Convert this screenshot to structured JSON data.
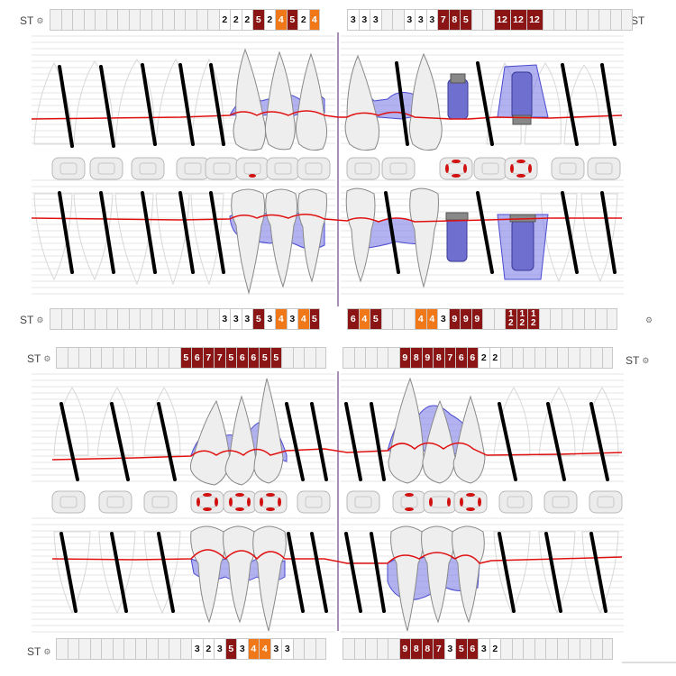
{
  "label": "ST",
  "gear_icon": "gear-icon",
  "colors": {
    "dark_red": "#8b1414",
    "orange": "#f07818",
    "bone": "#7f7fe8",
    "gumline": "#e01010",
    "implant": "#6f6fcf"
  },
  "maxilla": {
    "top_left": [
      "",
      "",
      "",
      "",
      "",
      "",
      "",
      "",
      "",
      "",
      "",
      "",
      "",
      "",
      "",
      "2",
      "2",
      "2",
      "5",
      "2",
      "4",
      "5",
      "2",
      "4"
    ],
    "top_left_styles": [
      "",
      "",
      "",
      "",
      "",
      "",
      "",
      "",
      "",
      "",
      "",
      "",
      "",
      "",
      "",
      "",
      "",
      "",
      "d",
      "",
      "o",
      "d",
      "",
      "o"
    ],
    "top_right": [
      "3",
      "3",
      "3",
      "",
      "",
      "3",
      "3",
      "3",
      "7",
      "8",
      "5",
      "",
      "",
      "12",
      "12",
      "12",
      "",
      "",
      "",
      "",
      "",
      "",
      "",
      ""
    ],
    "top_right_styles": [
      "",
      "",
      "",
      "",
      "",
      "",
      "",
      "",
      "d",
      "d",
      "d",
      "",
      "",
      "D",
      "D",
      "D",
      "",
      "",
      "",
      "",
      "",
      "",
      "",
      ""
    ],
    "bottom_left": [
      "",
      "",
      "",
      "",
      "",
      "",
      "",
      "",
      "",
      "",
      "",
      "",
      "",
      "",
      "",
      "3",
      "3",
      "3",
      "5",
      "3",
      "4",
      "3",
      "4",
      "5"
    ],
    "bottom_left_styles": [
      "",
      "",
      "",
      "",
      "",
      "",
      "",
      "",
      "",
      "",
      "",
      "",
      "",
      "",
      "",
      "",
      "",
      "",
      "d",
      "",
      "o",
      "",
      "o",
      "d"
    ],
    "bottom_right": [
      "6",
      "4",
      "5",
      "",
      "",
      "",
      "4",
      "4",
      "3",
      "9",
      "9",
      "9",
      "",
      "",
      "1 2",
      "1 2",
      "1 2",
      "",
      "",
      "",
      "",
      "",
      "",
      ""
    ],
    "bottom_right_styles": [
      "d",
      "o",
      "d",
      "",
      "",
      "",
      "o",
      "o",
      "",
      "d",
      "d",
      "d",
      "",
      "",
      "S",
      "S",
      "S",
      "",
      "",
      "",
      "",
      "",
      "",
      ""
    ]
  },
  "mandible": {
    "top_left": [
      "",
      "",
      "",
      "",
      "",
      "",
      "",
      "",
      "",
      "",
      "",
      "5",
      "6",
      "7",
      "7",
      "5",
      "6",
      "6",
      "5",
      "5",
      "",
      "",
      "",
      ""
    ],
    "top_left_styles": [
      "",
      "",
      "",
      "",
      "",
      "",
      "",
      "",
      "",
      "",
      "",
      "d",
      "d",
      "d",
      "d",
      "d",
      "d",
      "d",
      "d",
      "d",
      "",
      "",
      "",
      ""
    ],
    "top_right": [
      "",
      "",
      "",
      "",
      "",
      "9",
      "8",
      "9",
      "8",
      "7",
      "6",
      "6",
      "2",
      "2",
      "",
      "",
      "",
      "",
      "",
      "",
      "",
      "",
      "",
      ""
    ],
    "top_right_styles": [
      "",
      "",
      "",
      "",
      "",
      "d",
      "d",
      "d",
      "d",
      "d",
      "d",
      "d",
      "",
      "",
      "",
      "",
      "",
      "",
      "",
      "",
      "",
      "",
      "",
      ""
    ],
    "bottom_left": [
      "",
      "",
      "",
      "",
      "",
      "",
      "",
      "",
      "",
      "",
      "",
      "",
      "3",
      "2",
      "3",
      "5",
      "3",
      "4",
      "4",
      "3",
      "3",
      "",
      "",
      ""
    ],
    "bottom_left_styles": [
      "",
      "",
      "",
      "",
      "",
      "",
      "",
      "",
      "",
      "",
      "",
      "",
      "",
      "",
      "",
      "d",
      "",
      "o",
      "o",
      "",
      "",
      "",
      "",
      ""
    ],
    "bottom_right": [
      "",
      "",
      "",
      "",
      "",
      "9",
      "8",
      "8",
      "7",
      "3",
      "5",
      "6",
      "3",
      "2",
      "",
      "",
      "",
      "",
      "",
      "",
      "",
      "",
      "",
      ""
    ],
    "bottom_right_styles": [
      "",
      "",
      "",
      "",
      "",
      "d",
      "d",
      "d",
      "d",
      "",
      "d",
      "d",
      "",
      "",
      "",
      "",
      "",
      "",
      "",
      "",
      "",
      "",
      "",
      ""
    ]
  }
}
